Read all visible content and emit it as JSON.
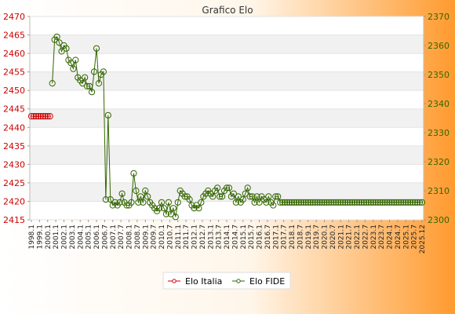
{
  "chart_data": {
    "type": "line",
    "title": "Grafico Elo",
    "grid": true,
    "legend_position": "bottom-center",
    "y_left": {
      "min": 2415,
      "max": 2470,
      "ticks": [
        2415,
        2420,
        2425,
        2430,
        2435,
        2440,
        2445,
        2450,
        2455,
        2460,
        2465,
        2470
      ]
    },
    "y_right": {
      "min": 2300,
      "max": 2370,
      "ticks": [
        2300,
        2310,
        2320,
        2330,
        2340,
        2350,
        2360,
        2370
      ]
    },
    "x_tick_labels": [
      "1998.1",
      "1999.1",
      "2000.1",
      "2001.1",
      "2002.1",
      "2003.1",
      "2004.1",
      "2005.1",
      "2006.1",
      "2006.7",
      "2007.1",
      "2007.7",
      "2008.1",
      "2008.7",
      "2009.1",
      "2009.7",
      "2010.1",
      "2010.7",
      "2011.1",
      "2011.7",
      "2012.1",
      "2012.7",
      "2013.1",
      "2013.7",
      "2014.1",
      "2014.7",
      "2015.1",
      "2015.7",
      "2016.1",
      "2016.7",
      "2017.1",
      "2017.7",
      "2018.1",
      "2018.7",
      "2019.1",
      "2019.7",
      "2020.1",
      "2020.7",
      "2021.1",
      "2021.7",
      "2022.1",
      "2022.7",
      "2023.1",
      "2023.7",
      "2024.1",
      "2024.7",
      "2025.1",
      "2025.7",
      "2025.12"
    ],
    "series": [
      {
        "name": "Elo Italia",
        "axis": "left",
        "color": "#cc0000",
        "values": [
          2443,
          2443,
          2443,
          2443,
          2443,
          2443,
          2443,
          2443,
          2443
        ]
      },
      {
        "name": "Elo FIDE",
        "axis": "right",
        "color": "#336600",
        "start_index": 9,
        "values": [
          2347,
          2362,
          2363,
          2361,
          2358,
          2360,
          2359,
          2355,
          2354,
          2352,
          2355,
          2349,
          2348,
          2347,
          2349,
          2346,
          2346,
          2344,
          2351,
          2359,
          2347,
          2350,
          2351,
          2307,
          2336,
          2307,
          2305,
          2306,
          2305,
          2306,
          2309,
          2306,
          2305,
          2305,
          2306,
          2316,
          2310,
          2306,
          2308,
          2306,
          2310,
          2308,
          2306,
          2305,
          2304,
          2303,
          2304,
          2306,
          2304,
          2302,
          2306,
          2302,
          2304,
          2301,
          2306,
          2310,
          2309,
          2308,
          2308,
          2307,
          2305,
          2304,
          2305,
          2304,
          2306,
          2308,
          2309,
          2310,
          2309,
          2308,
          2310,
          2311,
          2308,
          2308,
          2310,
          2311,
          2311,
          2308,
          2309,
          2306,
          2308,
          2306,
          2307,
          2309,
          2311,
          2308,
          2308,
          2306,
          2308,
          2306,
          2308,
          2307,
          2306,
          2308,
          2306,
          2305,
          2308,
          2308,
          2306,
          2306,
          2306,
          2306,
          2306,
          2306,
          2306,
          2306,
          2306,
          2306,
          2306,
          2306,
          2306,
          2306,
          2306,
          2306,
          2306,
          2306,
          2306,
          2306,
          2306,
          2306,
          2306,
          2306,
          2306,
          2306,
          2306,
          2306,
          2306,
          2306,
          2306,
          2306,
          2306,
          2306,
          2306,
          2306,
          2306,
          2306,
          2306,
          2306,
          2306,
          2306,
          2306,
          2306,
          2306,
          2306,
          2306,
          2306,
          2306,
          2306,
          2306,
          2306,
          2306,
          2306,
          2306,
          2306,
          2306,
          2306,
          2306,
          2306,
          2306,
          2306
        ]
      }
    ]
  },
  "legend": {
    "items": [
      {
        "label": "Elo Italia",
        "color": "#cc0000"
      },
      {
        "label": "Elo FIDE",
        "color": "#336600"
      }
    ]
  }
}
